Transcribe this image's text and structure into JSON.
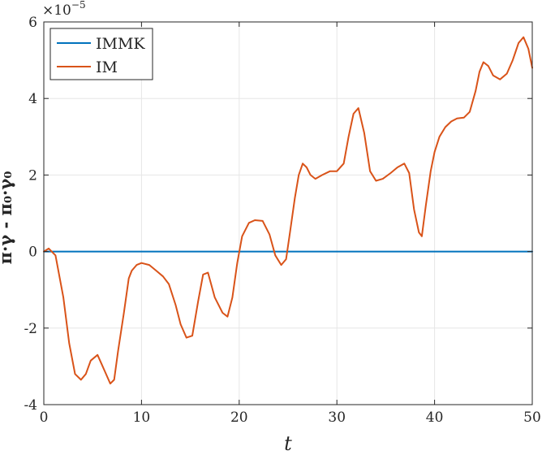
{
  "chart_data": {
    "type": "line",
    "xlabel": "t",
    "ylabel": "π·γ - π₀·γ₀",
    "multiplier": "×10",
    "multiplier_exp": "−5",
    "xlim": [
      0,
      50
    ],
    "ylim": [
      -4,
      6
    ],
    "xticks": [
      0,
      10,
      20,
      30,
      40,
      50
    ],
    "yticks": [
      -4,
      -2,
      0,
      2,
      4,
      6
    ],
    "xtick_labels": [
      "0",
      "10",
      "20",
      "30",
      "40",
      "50"
    ],
    "ytick_labels": [
      "-4",
      "-2",
      "0",
      "2",
      "4",
      "6"
    ],
    "grid": true,
    "legend_position": "top-left",
    "colors": {
      "IMMK": "#0072BD",
      "IM": "#D95319",
      "grid": "#e6e6e6",
      "axis": "#262626"
    },
    "series": [
      {
        "name": "IMMK",
        "x": [
          0,
          50
        ],
        "y": [
          0,
          0
        ]
      },
      {
        "name": "IM",
        "x": [
          0,
          0.5,
          1.2,
          2.0,
          2.6,
          3.2,
          3.8,
          4.3,
          4.8,
          5.5,
          6.2,
          6.8,
          7.2,
          7.6,
          8.2,
          8.7,
          9.0,
          9.5,
          10.0,
          10.8,
          11.5,
          12.2,
          12.8,
          13.5,
          14.0,
          14.6,
          15.2,
          15.8,
          16.3,
          16.8,
          17.5,
          18.3,
          18.8,
          19.3,
          19.8,
          20.3,
          21.0,
          21.6,
          22.4,
          23.1,
          23.7,
          24.3,
          24.8,
          25.2,
          25.7,
          26.1,
          26.5,
          26.9,
          27.3,
          27.8,
          28.5,
          29.3,
          30.0,
          30.7,
          31.2,
          31.7,
          32.2,
          32.8,
          33.4,
          34.0,
          34.7,
          35.5,
          36.2,
          36.9,
          37.4,
          37.9,
          38.4,
          38.7,
          39.1,
          39.6,
          40.0,
          40.5,
          41.1,
          41.7,
          42.3,
          43.0,
          43.6,
          44.2,
          44.6,
          45.0,
          45.5,
          46.0,
          46.7,
          47.4,
          48.0,
          48.6,
          49.1,
          49.6,
          50.0
        ],
        "y": [
          0.0,
          0.08,
          -0.1,
          -1.2,
          -2.4,
          -3.2,
          -3.35,
          -3.2,
          -2.85,
          -2.7,
          -3.1,
          -3.45,
          -3.35,
          -2.6,
          -1.6,
          -0.7,
          -0.5,
          -0.35,
          -0.3,
          -0.35,
          -0.5,
          -0.65,
          -0.85,
          -1.4,
          -1.9,
          -2.25,
          -2.2,
          -1.3,
          -0.6,
          -0.55,
          -1.2,
          -1.6,
          -1.7,
          -1.2,
          -0.3,
          0.4,
          0.75,
          0.82,
          0.8,
          0.45,
          -0.1,
          -0.35,
          -0.2,
          0.5,
          1.4,
          2.0,
          2.3,
          2.2,
          2.0,
          1.9,
          2.0,
          2.1,
          2.1,
          2.3,
          3.0,
          3.6,
          3.75,
          3.1,
          2.1,
          1.85,
          1.9,
          2.05,
          2.2,
          2.3,
          2.05,
          1.1,
          0.5,
          0.4,
          1.2,
          2.1,
          2.6,
          3.0,
          3.25,
          3.4,
          3.48,
          3.5,
          3.65,
          4.2,
          4.7,
          4.95,
          4.85,
          4.6,
          4.5,
          4.65,
          5.0,
          5.45,
          5.6,
          5.3,
          4.8
        ]
      }
    ]
  }
}
